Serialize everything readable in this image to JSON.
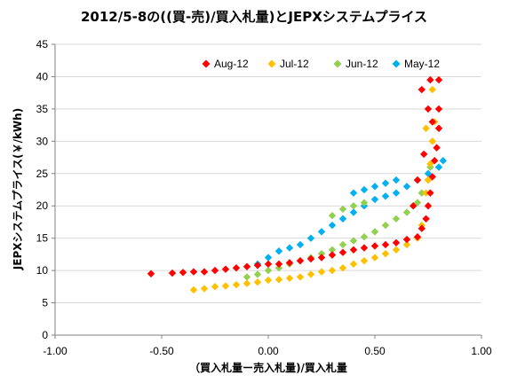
{
  "chart_data": {
    "type": "scatter",
    "title": "2012/5-8の((買-売)/買入札量)とJEPXシステムプライス",
    "xlabel": "（買入札量ー売入札量)/買入札量",
    "ylabel": "JEPXシステムプライス(￥/kWh)",
    "xlim": [
      -1.0,
      1.0
    ],
    "ylim": [
      0,
      45
    ],
    "xticks": [
      "-1.00",
      "-0.50",
      "0.00",
      "0.50",
      "1.00"
    ],
    "yticks": [
      "0",
      "5",
      "10",
      "15",
      "20",
      "25",
      "30",
      "35",
      "40",
      "45"
    ],
    "grid": true,
    "legend_position": "top-right",
    "series": [
      {
        "name": "Aug-12",
        "color": "#FF0000",
        "points": [
          [
            -0.55,
            9.5
          ],
          [
            -0.45,
            9.6
          ],
          [
            -0.4,
            9.7
          ],
          [
            -0.35,
            9.8
          ],
          [
            -0.3,
            9.8
          ],
          [
            -0.25,
            10.0
          ],
          [
            -0.2,
            10.2
          ],
          [
            -0.15,
            10.4
          ],
          [
            -0.1,
            10.6
          ],
          [
            -0.05,
            10.8
          ],
          [
            0.0,
            11.0
          ],
          [
            0.05,
            11.0
          ],
          [
            0.1,
            11.2
          ],
          [
            0.15,
            11.5
          ],
          [
            0.2,
            11.8
          ],
          [
            0.25,
            12.0
          ],
          [
            0.3,
            12.4
          ],
          [
            0.35,
            12.8
          ],
          [
            0.4,
            13.2
          ],
          [
            0.45,
            13.5
          ],
          [
            0.5,
            13.8
          ],
          [
            0.55,
            14.0
          ],
          [
            0.6,
            14.3
          ],
          [
            0.65,
            14.8
          ],
          [
            0.7,
            15.2
          ],
          [
            0.72,
            16.5
          ],
          [
            0.74,
            18.0
          ],
          [
            0.75,
            20.0
          ],
          [
            0.76,
            22.0
          ],
          [
            0.77,
            24.5
          ],
          [
            0.78,
            27.0
          ],
          [
            0.79,
            29.0
          ],
          [
            0.8,
            32.0
          ],
          [
            0.8,
            35.0
          ],
          [
            0.8,
            39.5
          ],
          [
            0.76,
            39.5
          ],
          [
            0.72,
            38.0
          ],
          [
            0.75,
            35.0
          ],
          [
            0.77,
            33.0
          ],
          [
            0.73,
            28.0
          ],
          [
            0.7,
            24.0
          ],
          [
            0.68,
            20.0
          ]
        ]
      },
      {
        "name": "Jul-12",
        "color": "#FFC000",
        "points": [
          [
            -0.35,
            7.0
          ],
          [
            -0.3,
            7.2
          ],
          [
            -0.25,
            7.5
          ],
          [
            -0.2,
            7.6
          ],
          [
            -0.15,
            7.8
          ],
          [
            -0.1,
            8.0
          ],
          [
            -0.05,
            8.2
          ],
          [
            0.0,
            8.5
          ],
          [
            0.05,
            8.6
          ],
          [
            0.1,
            8.8
          ],
          [
            0.15,
            9.0
          ],
          [
            0.2,
            9.4
          ],
          [
            0.25,
            9.8
          ],
          [
            0.3,
            10.0
          ],
          [
            0.35,
            10.4
          ],
          [
            0.4,
            11.0
          ],
          [
            0.45,
            11.5
          ],
          [
            0.5,
            12.0
          ],
          [
            0.55,
            12.6
          ],
          [
            0.6,
            13.2
          ],
          [
            0.65,
            14.0
          ],
          [
            0.7,
            15.0
          ],
          [
            0.72,
            17.0
          ],
          [
            0.74,
            22.0
          ],
          [
            0.75,
            24.0
          ],
          [
            0.76,
            26.5
          ],
          [
            0.77,
            30.0
          ],
          [
            0.78,
            33.0
          ],
          [
            0.77,
            38.0
          ],
          [
            0.74,
            32.0
          ]
        ]
      },
      {
        "name": "Jun-12",
        "color": "#92D050",
        "points": [
          [
            -0.1,
            9.0
          ],
          [
            -0.05,
            9.4
          ],
          [
            0.0,
            10.0
          ],
          [
            0.05,
            10.4
          ],
          [
            0.1,
            11.0
          ],
          [
            0.15,
            11.5
          ],
          [
            0.2,
            12.0
          ],
          [
            0.25,
            12.6
          ],
          [
            0.3,
            13.2
          ],
          [
            0.35,
            14.0
          ],
          [
            0.4,
            14.6
          ],
          [
            0.45,
            15.2
          ],
          [
            0.5,
            16.0
          ],
          [
            0.55,
            17.0
          ],
          [
            0.6,
            18.0
          ],
          [
            0.65,
            19.0
          ],
          [
            0.7,
            20.5
          ],
          [
            0.72,
            22.0
          ],
          [
            0.75,
            24.0
          ],
          [
            0.76,
            26.0
          ],
          [
            0.3,
            18.5
          ],
          [
            0.35,
            19.5
          ],
          [
            0.4,
            20.0
          ],
          [
            0.45,
            20.5
          ]
        ]
      },
      {
        "name": "May-12",
        "color": "#00B0F0",
        "points": [
          [
            -0.05,
            11.0
          ],
          [
            0.0,
            12.0
          ],
          [
            0.05,
            13.0
          ],
          [
            0.1,
            13.5
          ],
          [
            0.15,
            14.0
          ],
          [
            0.2,
            15.0
          ],
          [
            0.25,
            16.0
          ],
          [
            0.3,
            17.0
          ],
          [
            0.35,
            18.0
          ],
          [
            0.4,
            19.0
          ],
          [
            0.45,
            20.0
          ],
          [
            0.5,
            21.0
          ],
          [
            0.55,
            21.5
          ],
          [
            0.6,
            22.0
          ],
          [
            0.65,
            23.0
          ],
          [
            0.7,
            24.0
          ],
          [
            0.75,
            25.0
          ],
          [
            0.8,
            26.0
          ],
          [
            0.82,
            27.0
          ],
          [
            0.4,
            22.0
          ],
          [
            0.45,
            22.5
          ],
          [
            0.5,
            23.0
          ],
          [
            0.55,
            23.5
          ],
          [
            0.6,
            24.0
          ]
        ]
      }
    ]
  }
}
